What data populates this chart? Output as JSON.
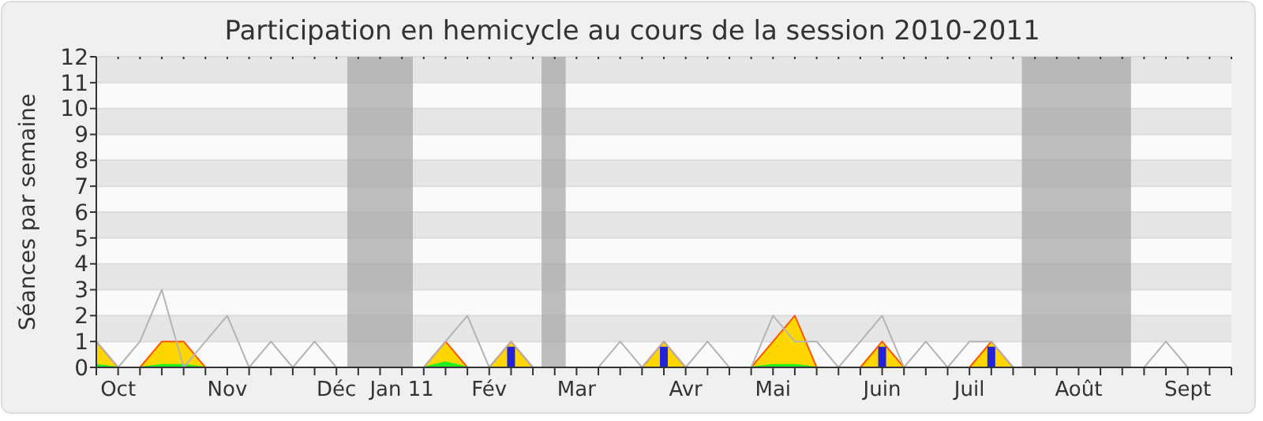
{
  "chart_data": {
    "type": "area",
    "title": "Participation en hemicycle au cours de la session 2010-2011",
    "ylabel": "Séances par semaine",
    "categories": [
      null,
      "Oct",
      null,
      null,
      null,
      null,
      "Nov",
      null,
      null,
      null,
      null,
      "Déc",
      null,
      null,
      "Jan 11",
      null,
      null,
      null,
      "Fév",
      null,
      null,
      null,
      "Mar",
      null,
      null,
      null,
      null,
      "Avr",
      null,
      null,
      null,
      "Mai",
      null,
      null,
      null,
      null,
      "Juin",
      null,
      null,
      null,
      "Juil",
      null,
      null,
      null,
      null,
      "Août",
      null,
      null,
      null,
      null,
      "Sept",
      null
    ],
    "ylim": [
      0,
      12
    ],
    "yticks": [
      0,
      1,
      2,
      3,
      4,
      5,
      6,
      7,
      8,
      9,
      10,
      11,
      12
    ],
    "grid": "y",
    "series": [
      {
        "type": "line",
        "color": "#b4b4b4",
        "values": [
          1,
          0,
          1,
          3,
          0,
          1,
          2,
          0,
          1,
          0,
          1,
          0,
          0,
          0,
          0,
          0,
          1,
          2,
          0,
          1,
          0,
          0,
          0,
          0,
          1,
          0,
          1,
          0,
          1,
          0,
          0,
          2,
          1,
          1,
          0,
          1,
          2,
          0,
          1,
          0,
          1,
          1,
          0,
          0,
          0,
          0,
          0,
          0,
          0,
          1,
          0,
          0
        ]
      },
      {
        "color": "#ffd700",
        "values": [
          1,
          0,
          0,
          1,
          1,
          0,
          0,
          0,
          0,
          0,
          0,
          0,
          0,
          0,
          0,
          0,
          1,
          0,
          0,
          1,
          0,
          0,
          0,
          0,
          0,
          0,
          1,
          0,
          0,
          0,
          0,
          1,
          2,
          0,
          0,
          0,
          1,
          0,
          0,
          0,
          0,
          1,
          0,
          0,
          0,
          0,
          0,
          0,
          0,
          0,
          0,
          0
        ]
      },
      {
        "color": "#22ee22",
        "values": [
          0.1,
          0,
          0,
          0.1,
          0.1,
          0,
          0,
          0,
          0,
          0,
          0,
          0,
          0,
          0,
          0,
          0,
          0.2,
          0,
          0,
          0,
          0,
          0,
          0,
          0,
          0,
          0,
          0,
          0,
          0,
          0,
          0,
          0.1,
          0.1,
          0,
          0,
          0,
          0,
          0,
          0,
          0,
          0,
          0,
          0,
          0,
          0,
          0,
          0,
          0,
          0,
          0,
          0,
          0
        ]
      },
      {
        "type": "bar",
        "color": "#2222dd",
        "values": [
          0,
          0,
          0,
          0,
          0,
          0,
          0,
          0,
          0,
          0,
          0,
          0,
          0,
          0,
          0,
          0,
          0,
          0,
          0,
          0.8,
          0,
          0,
          0,
          0,
          0,
          0,
          0.8,
          0,
          0,
          0,
          0,
          0,
          0,
          0,
          0,
          0,
          0.8,
          0,
          0,
          0,
          0,
          0.8,
          0,
          0,
          0,
          0,
          0,
          0,
          0,
          0,
          0,
          0
        ]
      }
    ]
  }
}
